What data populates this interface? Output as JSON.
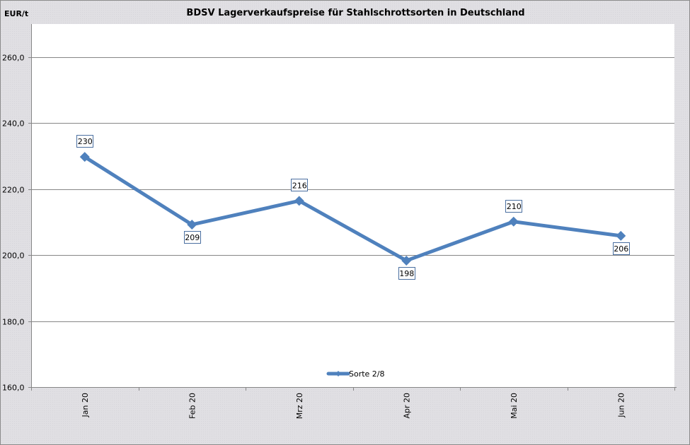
{
  "chart_data": {
    "type": "line",
    "title": "BDSV Lagerverkaufspreise für Stahlschrottsorten in Deutschland",
    "ylabel": "EUR/t",
    "xlabel": "",
    "categories": [
      "Jan 20",
      "Feb 20",
      "Mrz 20",
      "Apr 20",
      "Mai 20",
      "Jun 20"
    ],
    "series": [
      {
        "name": "Sorte 2/8",
        "color": "#4f81bd",
        "values": [
          229.7,
          209.2,
          216.4,
          198.3,
          210.1,
          205.8
        ],
        "data_labels": [
          "230",
          "209",
          "216",
          "198",
          "210",
          "206"
        ],
        "label_positions": [
          "above",
          "below",
          "above",
          "below",
          "above",
          "below"
        ]
      }
    ],
    "ylim": [
      160,
      270
    ],
    "yticks": [
      160,
      180,
      200,
      220,
      240,
      260
    ],
    "ytick_labels": [
      "160,0",
      "180,0",
      "200,0",
      "220,0",
      "240,0",
      "260,0"
    ],
    "grid": true,
    "legend_position": "bottom-inside"
  }
}
